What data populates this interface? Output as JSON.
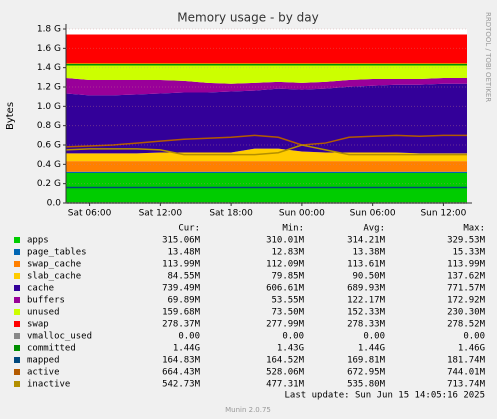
{
  "chart_data": {
    "type": "area",
    "title": "Memory usage - by day",
    "y_label": "Bytes",
    "side_note": "RRDTOOL / TOBI OETIKER",
    "categories": [
      null,
      "Sat 06:00",
      null,
      null,
      "Sat 12:00",
      null,
      null,
      "Sat 18:00",
      null,
      null,
      "Sun 00:00",
      null,
      null,
      "Sun 06:00",
      null,
      null,
      "Sun 12:00",
      null
    ],
    "ylim": [
      0,
      1.8
    ],
    "yticks": [
      {
        "value": 0,
        "label": "0.0"
      },
      {
        "value": 0.2,
        "label": "0.2 G"
      },
      {
        "value": 0.4,
        "label": "0.4 G"
      },
      {
        "value": 0.6,
        "label": "0.6 G"
      },
      {
        "value": 0.8,
        "label": "0.8 G"
      },
      {
        "value": 1.0,
        "label": "1.0 G"
      },
      {
        "value": 1.2,
        "label": "1.2 G"
      },
      {
        "value": 1.4,
        "label": "1.4 G"
      },
      {
        "value": 1.6,
        "label": "1.6 G"
      },
      {
        "value": 1.8,
        "label": "1.8 G"
      }
    ],
    "grid": true,
    "series": [
      {
        "name": "apps",
        "color": "#00cc00",
        "style": "area",
        "values": [
          0.31,
          0.31,
          0.31,
          0.31,
          0.31,
          0.31,
          0.31,
          0.31,
          0.31,
          0.31,
          0.31,
          0.31,
          0.31,
          0.31,
          0.31,
          0.31,
          0.31,
          0.31
        ]
      },
      {
        "name": "page_tables",
        "color": "#0066b3",
        "style": "area",
        "values": [
          0.013,
          0.013,
          0.013,
          0.013,
          0.013,
          0.013,
          0.013,
          0.013,
          0.013,
          0.013,
          0.013,
          0.013,
          0.013,
          0.013,
          0.013,
          0.013,
          0.013,
          0.013
        ]
      },
      {
        "name": "swap_cache",
        "color": "#ff8000",
        "style": "area",
        "values": [
          0.11,
          0.11,
          0.11,
          0.11,
          0.11,
          0.11,
          0.11,
          0.11,
          0.11,
          0.11,
          0.11,
          0.11,
          0.11,
          0.11,
          0.11,
          0.11,
          0.11,
          0.11
        ]
      },
      {
        "name": "slab_cache",
        "color": "#ffcc00",
        "style": "area",
        "values": [
          0.08,
          0.08,
          0.08,
          0.08,
          0.09,
          0.09,
          0.09,
          0.09,
          0.13,
          0.13,
          0.1,
          0.09,
          0.09,
          0.09,
          0.09,
          0.08,
          0.08,
          0.08
        ]
      },
      {
        "name": "cache",
        "color": "#330099",
        "style": "area",
        "values": [
          0.62,
          0.6,
          0.6,
          0.61,
          0.61,
          0.62,
          0.62,
          0.63,
          0.6,
          0.62,
          0.64,
          0.66,
          0.68,
          0.69,
          0.7,
          0.71,
          0.72,
          0.72
        ]
      },
      {
        "name": "buffers",
        "color": "#990099",
        "style": "area",
        "values": [
          0.16,
          0.16,
          0.16,
          0.15,
          0.14,
          0.12,
          0.1,
          0.08,
          0.08,
          0.07,
          0.07,
          0.07,
          0.07,
          0.07,
          0.06,
          0.06,
          0.06,
          0.06
        ]
      },
      {
        "name": "unused",
        "color": "#ccff00",
        "style": "area",
        "values": [
          0.15,
          0.17,
          0.17,
          0.17,
          0.17,
          0.18,
          0.2,
          0.21,
          0.2,
          0.19,
          0.2,
          0.19,
          0.17,
          0.16,
          0.16,
          0.16,
          0.15,
          0.15
        ]
      },
      {
        "name": "swap",
        "color": "#ff0000",
        "style": "area",
        "values": [
          0.3,
          0.3,
          0.3,
          0.3,
          0.3,
          0.3,
          0.3,
          0.3,
          0.3,
          0.3,
          0.3,
          0.3,
          0.3,
          0.3,
          0.3,
          0.3,
          0.3,
          0.3
        ]
      },
      {
        "name": "vmalloc_used",
        "color": "#888888",
        "style": "line",
        "values": [
          0,
          0,
          0,
          0,
          0,
          0,
          0,
          0,
          0,
          0,
          0,
          0,
          0,
          0,
          0,
          0,
          0,
          0
        ]
      },
      {
        "name": "committed",
        "color": "#008f00",
        "style": "line",
        "values": [
          1.43,
          1.43,
          1.43,
          1.43,
          1.43,
          1.43,
          1.43,
          1.43,
          1.43,
          1.43,
          1.43,
          1.43,
          1.43,
          1.43,
          1.43,
          1.43,
          1.43,
          1.43
        ]
      },
      {
        "name": "mapped",
        "color": "#00487d",
        "style": "line",
        "values": [
          0.16,
          0.16,
          0.16,
          0.16,
          0.16,
          0.16,
          0.16,
          0.16,
          0.16,
          0.16,
          0.16,
          0.16,
          0.16,
          0.16,
          0.16,
          0.16,
          0.16,
          0.16
        ]
      },
      {
        "name": "active",
        "color": "#b35a00",
        "style": "line",
        "values": [
          0.58,
          0.59,
          0.6,
          0.62,
          0.64,
          0.66,
          0.67,
          0.68,
          0.7,
          0.68,
          0.6,
          0.62,
          0.68,
          0.69,
          0.7,
          0.69,
          0.7,
          0.7
        ]
      },
      {
        "name": "inactive",
        "color": "#b38f00",
        "style": "line",
        "values": [
          0.55,
          0.56,
          0.56,
          0.56,
          0.55,
          0.5,
          0.5,
          0.5,
          0.5,
          0.52,
          0.6,
          0.55,
          0.5,
          0.5,
          0.5,
          0.5,
          0.5,
          0.5
        ]
      }
    ],
    "legend_table": {
      "headers": [
        "Cur:",
        "Min:",
        "Avg:",
        "Max:"
      ],
      "rows": [
        [
          "315.06M",
          "310.01M",
          "314.21M",
          "329.53M"
        ],
        [
          "13.48M",
          "12.83M",
          "13.38M",
          "15.33M"
        ],
        [
          "113.99M",
          "112.09M",
          "113.61M",
          "113.99M"
        ],
        [
          "84.55M",
          "79.85M",
          "90.50M",
          "137.62M"
        ],
        [
          "739.49M",
          "606.61M",
          "689.93M",
          "771.57M"
        ],
        [
          "69.89M",
          "53.55M",
          "122.17M",
          "172.92M"
        ],
        [
          "159.68M",
          "73.50M",
          "152.33M",
          "230.30M"
        ],
        [
          "278.37M",
          "277.99M",
          "278.33M",
          "278.52M"
        ],
        [
          "0.00",
          "0.00",
          "0.00",
          "0.00"
        ],
        [
          "1.44G",
          "1.43G",
          "1.44G",
          "1.46G"
        ],
        [
          "164.83M",
          "164.52M",
          "169.81M",
          "181.74M"
        ],
        [
          "664.43M",
          "528.06M",
          "672.95M",
          "744.01M"
        ],
        [
          "542.73M",
          "477.31M",
          "535.80M",
          "713.74M"
        ]
      ]
    },
    "last_update": "Last update: Sun Jun 15 14:05:16 2025",
    "footer": "Munin 2.0.75"
  }
}
